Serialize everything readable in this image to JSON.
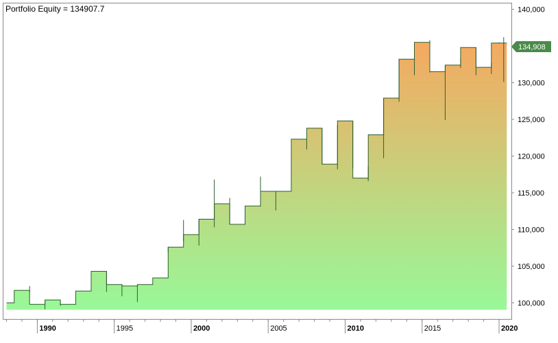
{
  "chart_data": {
    "type": "area",
    "title": "Portfolio Equity = 134907.7",
    "xlabel": "",
    "ylabel": "",
    "xlim": [
      1987.8,
      2020.8
    ],
    "ylim": [
      97800,
      140800
    ],
    "y_ticks": [
      100000,
      105000,
      110000,
      115000,
      120000,
      125000,
      130000,
      135000,
      140000
    ],
    "y_tick_labels": [
      "100,000",
      "105,000",
      "110,000",
      "115,000",
      "120,000",
      "125,000",
      "130,000",
      "135,000",
      "140,000"
    ],
    "x_ticks": [
      {
        "value": 1990,
        "label": "1990",
        "bold": true
      },
      {
        "value": 1995,
        "label": "1995",
        "bold": false
      },
      {
        "value": 2000,
        "label": "2000",
        "bold": true
      },
      {
        "value": 2005,
        "label": "2005",
        "bold": false
      },
      {
        "value": 2010,
        "label": "2010",
        "bold": true
      },
      {
        "value": 2015,
        "label": "2015",
        "bold": false
      },
      {
        "value": 2020,
        "label": "2020",
        "bold": true
      }
    ],
    "last_value_label": "134,908",
    "last_value": 134908,
    "grid": false,
    "legend": "none",
    "colors": {
      "line": "#2e5e2e",
      "fill_low": "#98f898",
      "fill_high": "#f5a960",
      "marker": "#4a8a4a",
      "axis": "#888888",
      "text": "#000000"
    },
    "series": [
      {
        "x": [
          1988.0,
          1988.5,
          1988.5,
          1989.5,
          1989.5,
          1990.5,
          1990.5,
          1991.5,
          1991.5,
          1992.5,
          1992.5,
          1993.5,
          1993.5,
          1994.5,
          1994.5,
          1995.5,
          1995.5,
          1996.5,
          1996.5,
          1997.5,
          1997.5,
          1998.5,
          1998.5,
          1999.5,
          1999.5,
          2000.5,
          2000.5,
          2001.5,
          2001.5,
          2002.5,
          2002.5,
          2003.5,
          2003.5,
          2004.5,
          2004.5,
          2005.5,
          2005.5,
          2006.5,
          2006.5,
          2007.5,
          2007.5,
          2008.5,
          2008.5,
          2009.5,
          2009.5,
          2010.5,
          2010.5,
          2011.5,
          2011.5,
          2012.5,
          2012.5,
          2013.5,
          2013.5,
          2014.5,
          2014.5,
          2015.5,
          2015.5,
          2016.5,
          2016.5,
          2017.5,
          2017.5,
          2018.5,
          2018.5,
          2019.5,
          2019.5,
          2020.5
        ],
        "y": [
          100000,
          100000,
          101700,
          101700,
          99800,
          99800,
          100400,
          100400,
          99800,
          99800,
          101600,
          101600,
          104300,
          104300,
          102500,
          102500,
          102300,
          102300,
          102500,
          102500,
          103400,
          103400,
          107600,
          107600,
          109300,
          109300,
          111400,
          111400,
          113500,
          113500,
          110700,
          110700,
          113200,
          113200,
          115200,
          115200,
          115200,
          115200,
          122300,
          122300,
          123800,
          123800,
          118900,
          118900,
          124800,
          124800,
          117000,
          117000,
          122900,
          122900,
          127900,
          127900,
          133200,
          133200,
          135500,
          135500,
          131500,
          131500,
          132400,
          132400,
          134800,
          134800,
          132100,
          132100,
          135400,
          135400
        ]
      }
    ],
    "wicks": [
      {
        "x": 1989.5,
        "low": 101400,
        "high": 102300
      },
      {
        "x": 1990.5,
        "low": 99100,
        "high": 100400
      },
      {
        "x": 1991.5,
        "low": 99600,
        "high": 100100
      },
      {
        "x": 1994.5,
        "low": 101500,
        "high": 104300
      },
      {
        "x": 1995.5,
        "low": 100900,
        "high": 102500
      },
      {
        "x": 1996.5,
        "low": 100100,
        "high": 102500
      },
      {
        "x": 1998.5,
        "low": 106900,
        "high": 107600
      },
      {
        "x": 1999.5,
        "low": 108400,
        "high": 111300
      },
      {
        "x": 2000.5,
        "low": 107800,
        "high": 111400
      },
      {
        "x": 2001.5,
        "low": 110300,
        "high": 116800
      },
      {
        "x": 2002.5,
        "low": 110700,
        "high": 114300
      },
      {
        "x": 2004.5,
        "low": 113100,
        "high": 117200
      },
      {
        "x": 2005.5,
        "low": 112600,
        "high": 115200
      },
      {
        "x": 2007.5,
        "low": 120900,
        "high": 122300
      },
      {
        "x": 2008.5,
        "low": 118900,
        "high": 123800
      },
      {
        "x": 2009.5,
        "low": 118200,
        "high": 124200
      },
      {
        "x": 2010.5,
        "low": 118300,
        "high": 124800
      },
      {
        "x": 2011.5,
        "low": 116600,
        "high": 118600
      },
      {
        "x": 2012.5,
        "low": 119700,
        "high": 127900
      },
      {
        "x": 2013.5,
        "low": 127400,
        "high": 133200
      },
      {
        "x": 2014.5,
        "low": 131000,
        "high": 135500
      },
      {
        "x": 2015.5,
        "low": 131400,
        "high": 135800
      },
      {
        "x": 2016.5,
        "low": 124900,
        "high": 132400
      },
      {
        "x": 2017.5,
        "low": 132000,
        "high": 133300
      },
      {
        "x": 2018.5,
        "low": 131000,
        "high": 134800
      },
      {
        "x": 2019.5,
        "low": 131200,
        "high": 132700
      },
      {
        "x": 2020.0,
        "low": 135400,
        "high": 135500
      },
      {
        "x": 2020.3,
        "low": 130100,
        "high": 136200
      }
    ]
  }
}
